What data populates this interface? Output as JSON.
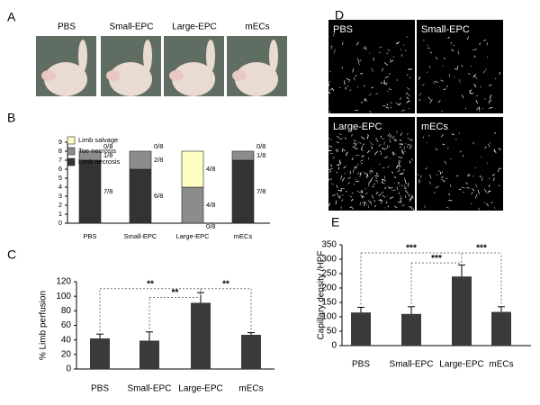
{
  "panels": {
    "A": {
      "letter": "A",
      "photo_labels": [
        "PBS",
        "Small-EPC",
        "Large-EPC",
        "mECs"
      ]
    },
    "B": {
      "letter": "B"
    },
    "C": {
      "letter": "C"
    },
    "D": {
      "letter": "D",
      "image_labels": [
        "PBS",
        "Small-EPC",
        "Large-EPC",
        "mECs"
      ]
    },
    "E": {
      "letter": "E"
    }
  },
  "chart_data": [
    {
      "type": "stacked_bar",
      "categories": [
        "PBS",
        "Small-EPC",
        "Large-EPC",
        "mECs"
      ],
      "series": [
        {
          "name": "Limb necrosis",
          "color": "#333333",
          "values": [
            7,
            6,
            0,
            7
          ],
          "value_labels": [
            "7/8",
            "6/8",
            "0/8",
            "7/8"
          ]
        },
        {
          "name": "Toe necrosis",
          "color": "#8c8c8c",
          "values": [
            1,
            2,
            4,
            1
          ],
          "value_labels": [
            "1/8",
            "2/8",
            "4/8",
            "1/8"
          ]
        },
        {
          "name": "Limb salvage",
          "color": "#ffffc4",
          "values": [
            0,
            0,
            4,
            0
          ],
          "value_labels": [
            "0/8",
            "0/8",
            "4/8",
            "0/8"
          ]
        }
      ],
      "ylim": [
        0,
        9
      ],
      "yticks": [
        0,
        1,
        2,
        3,
        4,
        5,
        6,
        7,
        8,
        9
      ]
    },
    {
      "type": "bar",
      "ylabel": "% Limb perfusion",
      "categories": [
        "PBS",
        "Small-EPC",
        "Large-EPC",
        "mECs"
      ],
      "values": [
        42,
        39,
        91,
        47
      ],
      "errors": [
        6,
        12,
        14,
        3
      ],
      "color": "#3a3a3a",
      "ylim": [
        0,
        120
      ],
      "yticks": [
        0,
        20,
        40,
        60,
        80,
        100,
        120
      ],
      "annotations": [
        {
          "label": "**",
          "between": [
            0,
            2
          ]
        },
        {
          "label": "**",
          "between": [
            1,
            2
          ]
        },
        {
          "label": "**",
          "between": [
            2,
            3
          ]
        }
      ]
    },
    {
      "type": "bar",
      "ylabel": "Capillary density /HPF",
      "categories": [
        "PBS",
        "Small-EPC",
        "Large-EPC",
        "mECs"
      ],
      "values": [
        115,
        110,
        240,
        117
      ],
      "errors": [
        18,
        25,
        40,
        18
      ],
      "color": "#3a3a3a",
      "ylim": [
        0,
        350
      ],
      "yticks": [
        0,
        50,
        100,
        150,
        200,
        250,
        300,
        350
      ],
      "annotations": [
        {
          "label": "***",
          "between": [
            0,
            2
          ]
        },
        {
          "label": "***",
          "between": [
            1,
            2
          ]
        },
        {
          "label": "***",
          "between": [
            2,
            3
          ]
        }
      ]
    }
  ]
}
